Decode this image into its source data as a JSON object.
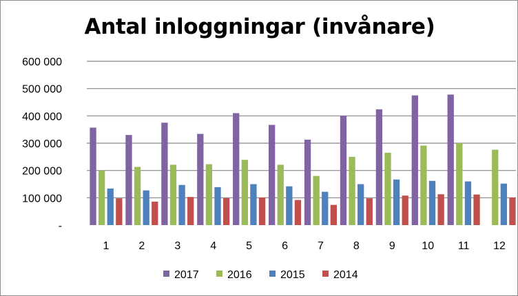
{
  "chart_data": {
    "type": "bar",
    "title": "Antal inloggningar (invånare)",
    "xlabel": "",
    "ylabel": "",
    "ylim": [
      0,
      600000
    ],
    "y_ticks": [
      0,
      100000,
      200000,
      300000,
      400000,
      500000,
      600000
    ],
    "y_tick_labels": [
      "-",
      "100 000",
      "200 000",
      "300 000",
      "400 000",
      "500 000",
      "600 000"
    ],
    "grid": true,
    "legend_position": "bottom",
    "categories": [
      "1",
      "2",
      "3",
      "4",
      "5",
      "6",
      "7",
      "8",
      "9",
      "10",
      "11",
      "12"
    ],
    "series": [
      {
        "name": "2017",
        "color": "#8064A2",
        "values": [
          357000,
          330000,
          375000,
          334000,
          410000,
          367000,
          313000,
          400000,
          424000,
          475000,
          478000,
          null
        ]
      },
      {
        "name": "2016",
        "color": "#9BBB59",
        "values": [
          200000,
          213000,
          221000,
          223000,
          239000,
          221000,
          180000,
          250000,
          265000,
          291000,
          300000,
          276000
        ]
      },
      {
        "name": "2015",
        "color": "#4F81BD",
        "values": [
          134000,
          127000,
          147000,
          139000,
          150000,
          142000,
          122000,
          150000,
          167000,
          162000,
          160000,
          152000
        ]
      },
      {
        "name": "2014",
        "color": "#C0504D",
        "values": [
          98000,
          86000,
          103000,
          99000,
          101000,
          92000,
          74000,
          98000,
          108000,
          113000,
          112000,
          101000
        ]
      }
    ]
  }
}
